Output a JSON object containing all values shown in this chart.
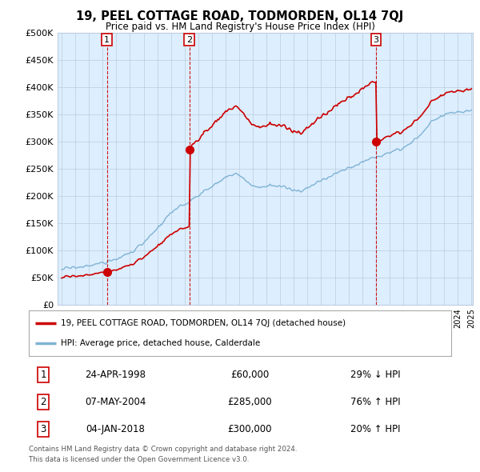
{
  "title": "19, PEEL COTTAGE ROAD, TODMORDEN, OL14 7QJ",
  "subtitle": "Price paid vs. HM Land Registry's House Price Index (HPI)",
  "ylim": [
    0,
    500000
  ],
  "yticks": [
    0,
    50000,
    100000,
    150000,
    200000,
    250000,
    300000,
    350000,
    400000,
    450000,
    500000
  ],
  "ytick_labels": [
    "£0",
    "£50K",
    "£100K",
    "£150K",
    "£200K",
    "£250K",
    "£300K",
    "£350K",
    "£400K",
    "£450K",
    "£500K"
  ],
  "sale_color": "#cc0000",
  "hpi_color": "#7fb3d3",
  "vline_color": "#cc0000",
  "background_color": "#ffffff",
  "plot_bg_color": "#ddeeff",
  "grid_color": "#bbccdd",
  "sales": [
    {
      "date_num": 1998.31,
      "price": 60000,
      "label": "1",
      "date_str": "24-APR-1998",
      "pct": "29%",
      "dir": "↓"
    },
    {
      "date_num": 2004.35,
      "price": 285000,
      "label": "2",
      "date_str": "07-MAY-2004",
      "pct": "76%",
      "dir": "↑"
    },
    {
      "date_num": 2018.01,
      "price": 300000,
      "label": "3",
      "date_str": "04-JAN-2018",
      "pct": "20%",
      "dir": "↑"
    }
  ],
  "legend_entries": [
    {
      "label": "19, PEEL COTTAGE ROAD, TODMORDEN, OL14 7QJ (detached house)",
      "color": "#cc0000"
    },
    {
      "label": "HPI: Average price, detached house, Calderdale",
      "color": "#7fb3d3"
    }
  ],
  "footer1": "Contains HM Land Registry data © Crown copyright and database right 2024.",
  "footer2": "This data is licensed under the Open Government Licence v3.0.",
  "table_rows": [
    [
      "1",
      "24-APR-1998",
      "£60,000",
      "29% ↓ HPI"
    ],
    [
      "2",
      "07-MAY-2004",
      "£285,000",
      "76% ↑ HPI"
    ],
    [
      "3",
      "04-JAN-2018",
      "£300,000",
      "20% ↑ HPI"
    ]
  ]
}
